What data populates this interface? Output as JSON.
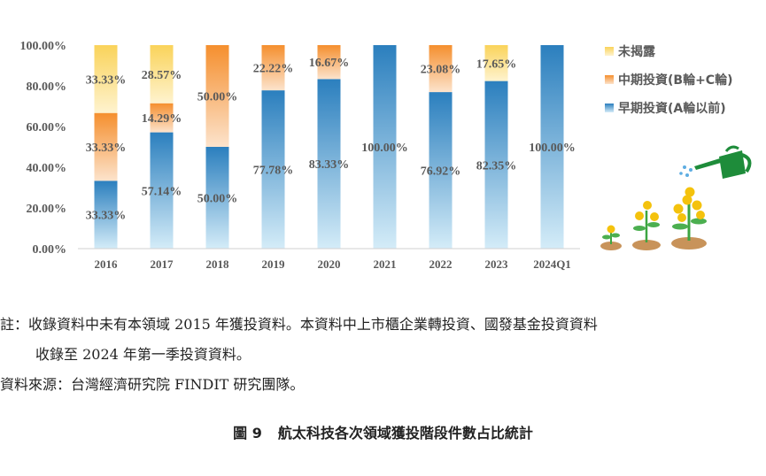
{
  "chart_data": {
    "type": "bar",
    "stacked": true,
    "categories": [
      "2016",
      "2017",
      "2018",
      "2019",
      "2020",
      "2021",
      "2022",
      "2023",
      "2024Q1"
    ],
    "series": [
      {
        "name": "早期投資(A輪以前)",
        "values": [
          33.33,
          57.14,
          50.0,
          77.78,
          83.33,
          100.0,
          76.92,
          82.35,
          100.0
        ],
        "labels": [
          "33.33%",
          "57.14%",
          "50.00%",
          "77.78%",
          "83.33%",
          "100.00%",
          "76.92%",
          "82.35%",
          "100.00%"
        ],
        "color": "#2E86C1"
      },
      {
        "name": "中期投資(B輪+C輪)",
        "values": [
          33.33,
          14.29,
          50.0,
          22.22,
          16.67,
          0,
          23.08,
          0,
          0
        ],
        "labels": [
          "33.33%",
          "14.29%",
          "50.00%",
          "22.22%",
          "16.67%",
          "",
          "23.08%",
          "",
          ""
        ],
        "color": "#F59B42"
      },
      {
        "name": "未揭露",
        "values": [
          33.33,
          28.57,
          0,
          0,
          0,
          0,
          0,
          17.65,
          0
        ],
        "labels": [
          "33.33%",
          "28.57%",
          "",
          "",
          "",
          "",
          "",
          "17.65%",
          ""
        ],
        "color": "#FAD35A"
      }
    ],
    "y_ticks": [
      "0.00%",
      "20.00%",
      "40.00%",
      "60.00%",
      "80.00%",
      "100.00%"
    ],
    "ylim": [
      0,
      100
    ],
    "legend_position": "right",
    "grid": false
  },
  "notes": {
    "line1": "註：收錄資料中未有本領域 2015 年獲投資料。本資料中上市櫃企業轉投資、國發基金投資資料",
    "line2": "收錄至 2024 年第一季投資資料。",
    "source": "資料來源：台灣經濟研究院 FINDIT 研究團隊。"
  },
  "caption": {
    "number": "圖 9",
    "title": "航太科技各次領域獲投階段件數占比統計"
  },
  "illustration": {
    "icon": "watering-can-growing-coin-plants-icon"
  }
}
